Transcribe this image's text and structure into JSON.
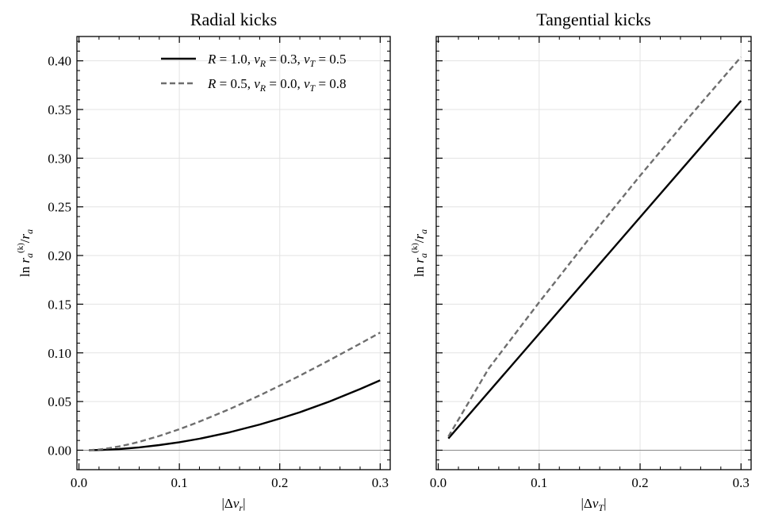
{
  "chart_data": [
    {
      "type": "line",
      "title": "Radial kicks",
      "xlabel": "|Δv_r|",
      "ylabel": "ln r_a^(k)/r_a",
      "xlim": [
        -0.002,
        0.31
      ],
      "ylim": [
        -0.02,
        0.425
      ],
      "xticks": [
        0.0,
        0.1,
        0.2,
        0.3
      ],
      "xtick_labels": [
        "0.0",
        "0.1",
        "0.2",
        "0.3"
      ],
      "yticks": [
        0.0,
        0.05,
        0.1,
        0.15,
        0.2,
        0.25,
        0.3,
        0.35,
        0.4
      ],
      "ytick_labels": [
        "0.00",
        "0.05",
        "0.10",
        "0.15",
        "0.20",
        "0.25",
        "0.30",
        "0.35",
        "0.40"
      ],
      "grid": true,
      "zero_line": true,
      "legend": "top-right",
      "series": [
        {
          "name": "R = 1.0, v_R = 0.3, v_T = 0.5",
          "style": "solid",
          "color": "#000000",
          "x": [
            0.01,
            0.02,
            0.03,
            0.04,
            0.05,
            0.06,
            0.08,
            0.1,
            0.12,
            0.15,
            0.18,
            0.2,
            0.22,
            0.25,
            0.28,
            0.3
          ],
          "values": [
            0.0,
            0.0002,
            0.0006,
            0.0012,
            0.002,
            0.0029,
            0.0053,
            0.0082,
            0.0118,
            0.0184,
            0.0264,
            0.0325,
            0.039,
            0.0502,
            0.0628,
            0.0718
          ]
        },
        {
          "name": "R = 0.5, v_R = 0.0, v_T = 0.8",
          "style": "dashed",
          "color": "#6e6e6e",
          "x": [
            0.01,
            0.02,
            0.03,
            0.04,
            0.05,
            0.06,
            0.08,
            0.1,
            0.12,
            0.15,
            0.18,
            0.2,
            0.22,
            0.25,
            0.28,
            0.3
          ],
          "values": [
            0.0,
            0.0007,
            0.0021,
            0.0039,
            0.0061,
            0.0086,
            0.0146,
            0.0216,
            0.0294,
            0.0422,
            0.0563,
            0.0663,
            0.0766,
            0.0927,
            0.1094,
            0.1208
          ]
        }
      ]
    },
    {
      "type": "line",
      "title": "Tangential kicks",
      "xlabel": "|Δv_T|",
      "ylabel": "ln r_a^(k)/r_a",
      "xlim": [
        -0.002,
        0.31
      ],
      "ylim": [
        -0.02,
        0.425
      ],
      "xticks": [
        0.0,
        0.1,
        0.2,
        0.3
      ],
      "xtick_labels": [
        "0.0",
        "0.1",
        "0.2",
        "0.3"
      ],
      "yticks": [
        0.0,
        0.05,
        0.1,
        0.15,
        0.2,
        0.25,
        0.3,
        0.35,
        0.4
      ],
      "ytick_labels": [],
      "grid": true,
      "zero_line": true,
      "legend": "none",
      "series": [
        {
          "name": "R = 1.0, v_R = 0.3, v_T = 0.5",
          "style": "solid",
          "color": "#000000",
          "x": [
            0.01,
            0.3
          ],
          "values": [
            0.012,
            0.359
          ]
        },
        {
          "name": "R = 0.5, v_R = 0.0, v_T = 0.8",
          "style": "dashed",
          "color": "#6e6e6e",
          "x": [
            0.01,
            0.05,
            0.1,
            0.15,
            0.2,
            0.25,
            0.3
          ],
          "values": [
            0.014,
            0.084,
            0.152,
            0.218,
            0.282,
            0.344,
            0.404
          ]
        }
      ]
    }
  ]
}
